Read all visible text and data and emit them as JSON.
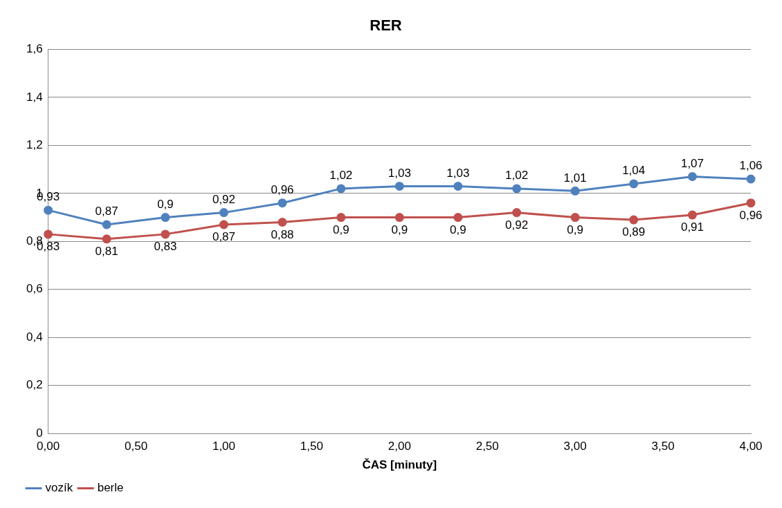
{
  "chart_data": {
    "type": "line",
    "title": "RER",
    "xlabel": "ČAS [minuty]",
    "x": [
      0,
      0.333,
      0.667,
      1,
      1.333,
      1.667,
      2,
      2.333,
      2.667,
      3,
      3.333,
      3.667,
      4
    ],
    "series": [
      {
        "name": "vozík",
        "color": "#4f81bd",
        "values": [
          0.93,
          0.87,
          0.9,
          0.92,
          0.96,
          1.02,
          1.03,
          1.03,
          1.02,
          1.01,
          1.04,
          1.07,
          1.06
        ],
        "value_labels": [
          "0,93",
          "0,87",
          "0,9",
          "0,92",
          "0,96",
          "1,02",
          "1,03",
          "1,03",
          "1,02",
          "1,01",
          "1,04",
          "1,07",
          "1,06"
        ]
      },
      {
        "name": "berle",
        "color": "#c0504d",
        "values": [
          0.83,
          0.81,
          0.83,
          0.87,
          0.88,
          0.9,
          0.9,
          0.9,
          0.92,
          0.9,
          0.89,
          0.91,
          0.96
        ],
        "value_labels": [
          "0,83",
          "0,81",
          "0,83",
          "0,87",
          "0,88",
          "0,9",
          "0,9",
          "0,9",
          "0,92",
          "0,9",
          "0,89",
          "0,91",
          "0,96"
        ]
      }
    ],
    "xlim": [
      0,
      4
    ],
    "xticks": [
      {
        "value": 0,
        "label": "0,00"
      },
      {
        "value": 0.5,
        "label": "0,50"
      },
      {
        "value": 1,
        "label": "1,00"
      },
      {
        "value": 1.5,
        "label": "1,50"
      },
      {
        "value": 2,
        "label": "2,00"
      },
      {
        "value": 2.5,
        "label": "2,50"
      },
      {
        "value": 3,
        "label": "3,00"
      },
      {
        "value": 3.5,
        "label": "3,50"
      },
      {
        "value": 4,
        "label": "4,00"
      }
    ],
    "ylim": [
      0,
      1.6
    ],
    "yticks": [
      0,
      {
        "value": 0.2,
        "label": "0,2"
      },
      {
        "value": 0.4,
        "label": "0,4"
      },
      {
        "value": 0.6,
        "label": "0,6"
      },
      {
        "value": 0.8,
        "label": "0,8"
      },
      1,
      {
        "value": 1.2,
        "label": "1,2"
      },
      {
        "value": 1.4,
        "label": "1,4"
      },
      {
        "value": 1.6,
        "label": "1,6"
      }
    ],
    "grid": "y",
    "legend": "bottom left",
    "marker": "circle",
    "line_style": "solid"
  }
}
